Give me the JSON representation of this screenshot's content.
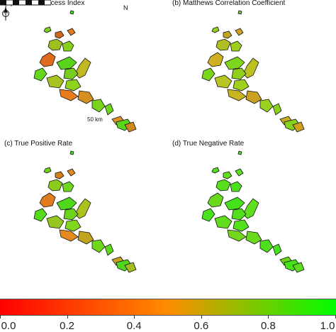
{
  "panels": [
    {
      "title": "(a) Critical Success Index",
      "colors": [
        "#43d61a",
        "#7bd51c",
        "#d06a1b",
        "#df7e20",
        "#9fbf20",
        "#86d01c",
        "#e06a1b",
        "#5bd21c",
        "#c2b822",
        "#77cc1d",
        "#62d71c",
        "#a8c321",
        "#8ed31c",
        "#e97d1e",
        "#d6901f",
        "#7ad41c",
        "#6fd51c",
        "#dd9022",
        "#5ad51c",
        "#cf8a1e"
      ]
    },
    {
      "title": "(b) Matthews Correlation Coefficient",
      "colors": [
        "#73d11c",
        "#93d41c",
        "#c1a421",
        "#d2a021",
        "#b0c020",
        "#9dcf1c",
        "#cfb021",
        "#7fd41c",
        "#bdc021",
        "#90cf1c",
        "#7ad61c",
        "#b7c421",
        "#9fd11c",
        "#c9b421",
        "#caa222",
        "#9ad11c",
        "#89d31c",
        "#c4ac22",
        "#86d21c",
        "#cfa11f"
      ]
    },
    {
      "title": "(c) True Positive Rate",
      "colors": [
        "#3fdb1b",
        "#6fd61c",
        "#d5801c",
        "#df8b1f",
        "#8bcc1d",
        "#6ed91c",
        "#e07c1c",
        "#4fd81c",
        "#acc21f",
        "#6cd31c",
        "#52dc1b",
        "#94c71f",
        "#7fd81c",
        "#e58b1d",
        "#c0a41f",
        "#6ed81c",
        "#5fd91c",
        "#c9a021",
        "#4ed71c",
        "#a1bd1f"
      ]
    },
    {
      "title": "(d) True Negative Rate",
      "colors": [
        "#3fe41b",
        "#4fe01b",
        "#62dd1c",
        "#5ce01b",
        "#58de1c",
        "#4be21b",
        "#6ad91d",
        "#45e21b",
        "#5ee01c",
        "#53df1b",
        "#49e31b",
        "#61dd1c",
        "#52e11b",
        "#74d71d",
        "#6bda1d",
        "#4ee01b",
        "#48e31b",
        "#6fd51c",
        "#47e21b",
        "#5bdc1c"
      ]
    }
  ],
  "north_arrow": {
    "label": "N"
  },
  "scale_bar": {
    "label": "50 km"
  },
  "colorbar": {
    "ticks": [
      "0.0",
      "0.2",
      "0.4",
      "0.6",
      "0.8",
      "1.0"
    ],
    "colors": [
      "#ff0000",
      "#ff8c00",
      "#00ff00"
    ]
  }
}
